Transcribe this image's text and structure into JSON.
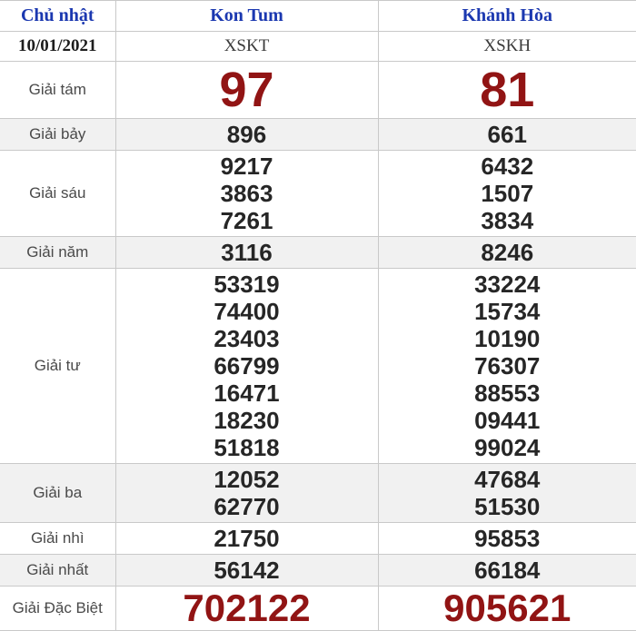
{
  "colors": {
    "header_blue": "#1b38b0",
    "highlight_red": "#911414",
    "number_dark": "#262626",
    "label_gray": "#4a4a4a",
    "shaded_row_bg": "#f1f1f1",
    "border": "#c9c9c9"
  },
  "header": {
    "day": "Chủ nhật",
    "date": "10/01/2021",
    "stations": [
      {
        "name": "Kon Tum",
        "code": "XSKT"
      },
      {
        "name": "Khánh Hòa",
        "code": "XSKH"
      }
    ]
  },
  "prizes": [
    {
      "label": "Giải tám",
      "style": "big-red",
      "shaded": false,
      "kon_tum": [
        "97"
      ],
      "khanh_hoa": [
        "81"
      ]
    },
    {
      "label": "Giải bảy",
      "style": "",
      "shaded": true,
      "kon_tum": [
        "896"
      ],
      "khanh_hoa": [
        "661"
      ]
    },
    {
      "label": "Giải sáu",
      "style": "",
      "shaded": false,
      "kon_tum": [
        "9217",
        "3863",
        "7261"
      ],
      "khanh_hoa": [
        "6432",
        "1507",
        "3834"
      ]
    },
    {
      "label": "Giải năm",
      "style": "",
      "shaded": true,
      "kon_tum": [
        "3116"
      ],
      "khanh_hoa": [
        "8246"
      ]
    },
    {
      "label": "Giải tư",
      "style": "",
      "shaded": false,
      "kon_tum": [
        "53319",
        "74400",
        "23403",
        "66799",
        "16471",
        "18230",
        "51818"
      ],
      "khanh_hoa": [
        "33224",
        "15734",
        "10190",
        "76307",
        "88553",
        "09441",
        "99024"
      ]
    },
    {
      "label": "Giải ba",
      "style": "",
      "shaded": true,
      "kon_tum": [
        "12052",
        "62770"
      ],
      "khanh_hoa": [
        "47684",
        "51530"
      ]
    },
    {
      "label": "Giải nhì",
      "style": "",
      "shaded": false,
      "kon_tum": [
        "21750"
      ],
      "khanh_hoa": [
        "95853"
      ]
    },
    {
      "label": "Giải nhất",
      "style": "",
      "shaded": true,
      "kon_tum": [
        "56142"
      ],
      "khanh_hoa": [
        "66184"
      ]
    },
    {
      "label": "Giải Đặc Biệt",
      "style": "special-red",
      "shaded": false,
      "kon_tum": [
        "702122"
      ],
      "khanh_hoa": [
        "905621"
      ]
    }
  ]
}
